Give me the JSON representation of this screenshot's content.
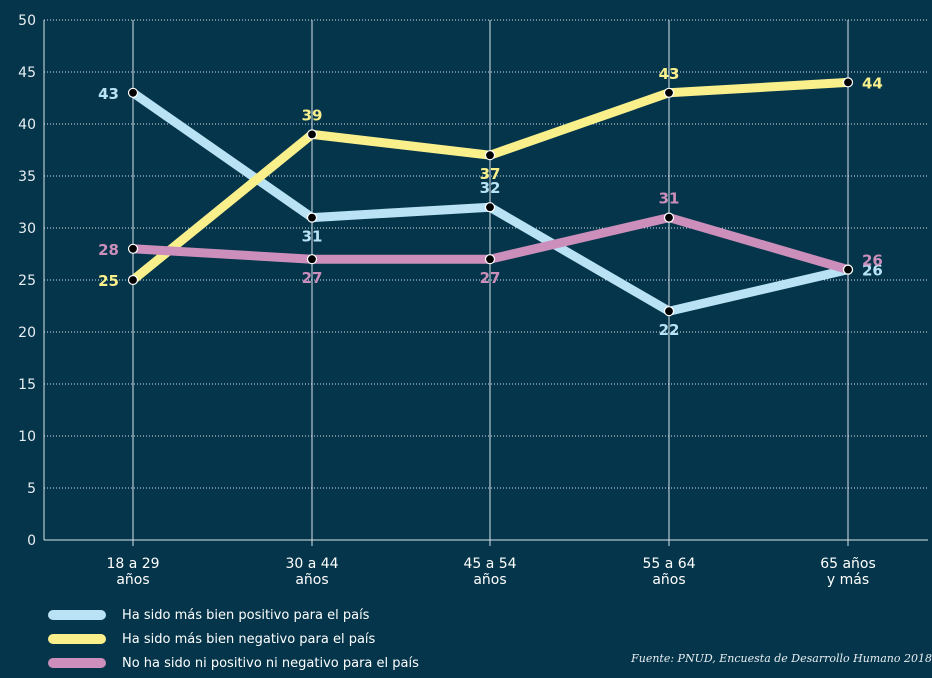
{
  "chart_data": {
    "type": "line",
    "categories": [
      [
        "18 a 29",
        "años"
      ],
      [
        "30 a 44",
        "años"
      ],
      [
        "45 a 54",
        "años"
      ],
      [
        "55 a 64",
        "años"
      ],
      [
        "65 años",
        "y más"
      ]
    ],
    "ylim": [
      0,
      50
    ],
    "yticks": [
      0,
      5,
      10,
      15,
      20,
      25,
      30,
      35,
      40,
      45,
      50
    ],
    "grid": true,
    "legend_position": "bottom-left",
    "series": [
      {
        "name": "Ha sido más bien positivo para el país",
        "values": [
          43,
          31,
          32,
          22,
          26
        ],
        "color": "#b9e3f5",
        "label_pos": [
          "left",
          "below",
          "above",
          "below",
          "right"
        ]
      },
      {
        "name": "Ha sido más bien negativo para el país",
        "values": [
          25,
          39,
          37,
          43,
          44
        ],
        "color": "#f9f08c",
        "label_pos": [
          "left",
          "above",
          "below",
          "above",
          "right"
        ]
      },
      {
        "name": "No ha sido ni positivo ni negativo para el país",
        "values": [
          28,
          27,
          27,
          31,
          26
        ],
        "color": "#cc8fbb",
        "label_pos": [
          "left",
          "below",
          "below",
          "above",
          "above-right"
        ]
      }
    ]
  },
  "source": "Fuente: PNUD, Encuesta de Desarrollo Humano 2018"
}
